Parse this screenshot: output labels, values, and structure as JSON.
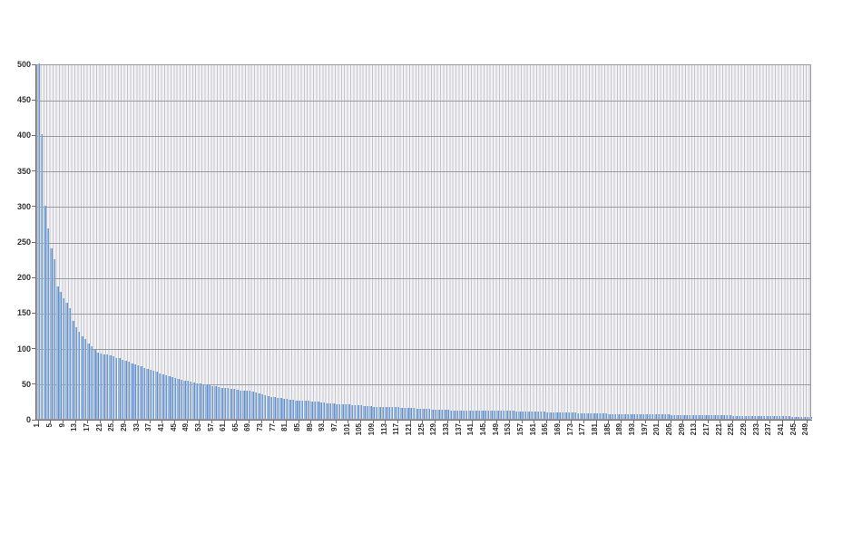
{
  "chart_data": {
    "type": "bar",
    "title": "",
    "xlabel": "",
    "ylabel": "",
    "legend": "none",
    "grid": "horizontal-major-and-vertical-category",
    "ylim": [
      0,
      500
    ],
    "y_ticks": [
      0,
      50,
      100,
      150,
      200,
      250,
      300,
      350,
      400,
      450,
      500
    ],
    "categories_from": 1,
    "categories_to": 250,
    "x_tick_step": 4,
    "x_tick_labels": [
      "1",
      "5",
      "9",
      "13",
      "17",
      "21",
      "25",
      "29",
      "33",
      "37",
      "41",
      "45",
      "49",
      "53",
      "57",
      "61",
      "65",
      "69",
      "73",
      "77",
      "81",
      "85",
      "89",
      "93",
      "97",
      "101",
      "105",
      "109",
      "113",
      "117",
      "121",
      "125",
      "129",
      "133",
      "137",
      "141",
      "145",
      "149",
      "153",
      "157",
      "161",
      "165",
      "169",
      "173",
      "177",
      "181",
      "185",
      "189",
      "193",
      "197",
      "201",
      "205",
      "209",
      "213",
      "217",
      "221",
      "225",
      "229",
      "233",
      "237",
      "241",
      "245",
      "249"
    ],
    "values": [
      500,
      400,
      300,
      268,
      240,
      225,
      186,
      178,
      170,
      163,
      155,
      138,
      129,
      123,
      116,
      112,
      106,
      102,
      97,
      93,
      92,
      91,
      90,
      89,
      88,
      86,
      85,
      83,
      82,
      80,
      78,
      77,
      75,
      74,
      72,
      70,
      69,
      67,
      66,
      64,
      63,
      61,
      60,
      59,
      57,
      56,
      55,
      54,
      53,
      52,
      51,
      50,
      50,
      49,
      48,
      47,
      46,
      46,
      45,
      44,
      43,
      43,
      42,
      42,
      41,
      40,
      40,
      39,
      39,
      38,
      37,
      36,
      35,
      33,
      32,
      31,
      30,
      29,
      29,
      28,
      28,
      27,
      27,
      26,
      26,
      26,
      25,
      25,
      24,
      24,
      24,
      23,
      23,
      22,
      22,
      22,
      21,
      21,
      20,
      20,
      20,
      19,
      19,
      19,
      19,
      18,
      18,
      18,
      17,
      17,
      17,
      17,
      16,
      16,
      16,
      16,
      16,
      15,
      15,
      15,
      15,
      15,
      14,
      14,
      14,
      14,
      14,
      13,
      13,
      13,
      13,
      13,
      13,
      12,
      12,
      12,
      12,
      12,
      12,
      12,
      12,
      12,
      12,
      12,
      11,
      11,
      11,
      11,
      11,
      11,
      11,
      11,
      11,
      11,
      10,
      10,
      10,
      10,
      10,
      10,
      10,
      10,
      10,
      10,
      9,
      9,
      9,
      9,
      9,
      9,
      9,
      9,
      9,
      9,
      8,
      8,
      8,
      8,
      8,
      8,
      8,
      8,
      8,
      8,
      7,
      7,
      7,
      7,
      7,
      7,
      7,
      7,
      7,
      7,
      6,
      6,
      6,
      6,
      6,
      6,
      6,
      6,
      6,
      6,
      5,
      5,
      5,
      5,
      5,
      5,
      5,
      5,
      5,
      5,
      5,
      5,
      5,
      5,
      5,
      5,
      5,
      5,
      5,
      5,
      4,
      4,
      4,
      4,
      4,
      4,
      4,
      4,
      4,
      4,
      4,
      4,
      4,
      4,
      4,
      4,
      4,
      4,
      4,
      3,
      3,
      3,
      3,
      3,
      3,
      3
    ],
    "colors": {
      "bar_main": "#4f81bd",
      "bar_highlight": "#b3cdea",
      "bar_mid": "#7ba2d4",
      "plot_fill": "#f2f2f4",
      "category_line": "#c6c6ce",
      "major_gridline": "#9a9aa2",
      "axis_line": "#6f6f76",
      "axis_text": "#333333",
      "background": "#ffffff"
    }
  }
}
